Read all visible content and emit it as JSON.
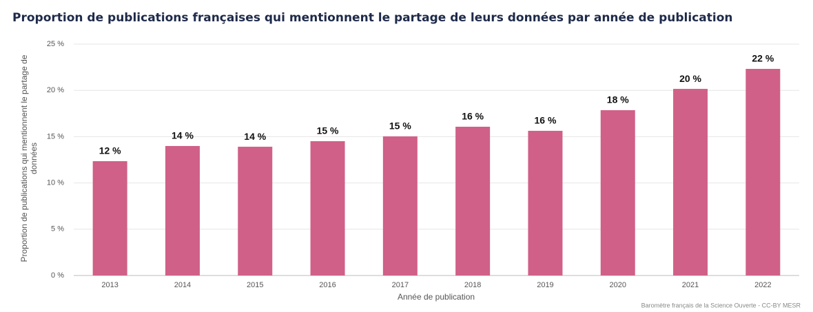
{
  "chart_data": {
    "type": "bar",
    "title": "Proportion de publications françaises qui mentionnent le partage de leurs données par année de publication",
    "x_label": "Année de publication",
    "y_label": "Proportion de publications qui mentionnent le partage de données",
    "source": "Baromètre français de la Science Ouverte - CC-BY MESR",
    "categories": [
      "2013",
      "2014",
      "2015",
      "2016",
      "2017",
      "2018",
      "2019",
      "2020",
      "2021",
      "2022"
    ],
    "values": [
      12.35,
      13.99,
      13.91,
      14.51,
      15.03,
      16.07,
      15.63,
      17.86,
      20.16,
      22.32
    ],
    "value_labels": [
      "12 %",
      "14 %",
      "14 %",
      "15 %",
      "15 %",
      "16 %",
      "16 %",
      "18 %",
      "20 %",
      "22 %"
    ],
    "color": "#d06087",
    "ylim": [
      0,
      25
    ],
    "yticks": [
      {
        "value": 0,
        "label": "0 %"
      },
      {
        "value": 5,
        "label": "5 %"
      },
      {
        "value": 10,
        "label": "10 %"
      },
      {
        "value": 15,
        "label": "15 %"
      },
      {
        "value": 20,
        "label": "20 %"
      },
      {
        "value": 25,
        "label": "25 %"
      }
    ],
    "grid": true
  }
}
